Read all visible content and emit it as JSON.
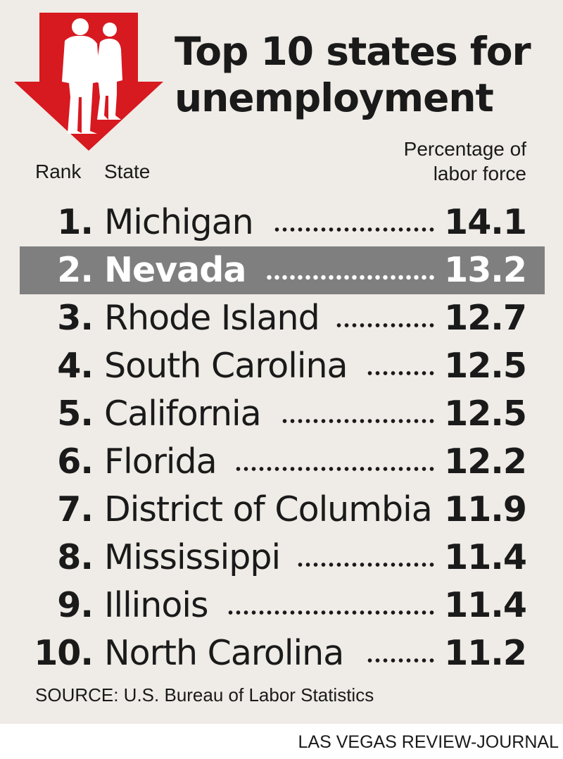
{
  "title_lines": [
    "Top 10 states for",
    "unemployment"
  ],
  "headers": {
    "rank": "Rank",
    "state": "State",
    "pct_lines": [
      "Percentage of",
      "labor force"
    ]
  },
  "chart_data": {
    "type": "table",
    "title": "Top 10 states for unemployment",
    "columns": [
      "Rank",
      "State",
      "Percentage of labor force"
    ],
    "highlighted_rank": 2,
    "rows": [
      {
        "rank": "1.",
        "state": "Michigan",
        "value": "14.1"
      },
      {
        "rank": "2.",
        "state": "Nevada",
        "value": "13.2"
      },
      {
        "rank": "3.",
        "state": "Rhode Island",
        "value": "12.7"
      },
      {
        "rank": "4.",
        "state": "South Carolina",
        "value": "12.5"
      },
      {
        "rank": "5.",
        "state": "California",
        "value": "12.5"
      },
      {
        "rank": "6.",
        "state": "Florida",
        "value": "12.2"
      },
      {
        "rank": "7.",
        "state": "District of Columbia",
        "value": "11.9"
      },
      {
        "rank": "8.",
        "state": "Mississippi",
        "value": "11.4"
      },
      {
        "rank": "9.",
        "state": "Illinois",
        "value": "11.4"
      },
      {
        "rank": "10.",
        "state": "North Carolina",
        "value": "11.2"
      }
    ]
  },
  "source": "SOURCE: U.S. Bureau of Labor Statistics",
  "credit": "LAS VEGAS REVIEW-JOURNAL",
  "colors": {
    "background": "#efebe6",
    "arrow": "#d71920",
    "highlight_band": "#7f7f7f",
    "text": "#1a1a1a"
  },
  "icons": [
    "down-arrow-icon",
    "people-silhouette-icon"
  ]
}
